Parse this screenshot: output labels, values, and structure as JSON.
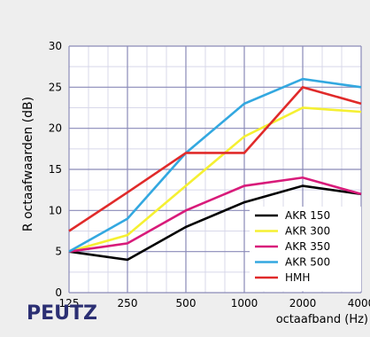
{
  "chart_data": {
    "type": "line",
    "ylabel": "R octaafwaarden (dB)",
    "xlabel": "octaafband (Hz)",
    "logo": "PEUTZ",
    "categories": [
      "125",
      "250",
      "500",
      "1000",
      "2000",
      "4000"
    ],
    "ylim": [
      0,
      30
    ],
    "yticks": [
      0,
      5,
      10,
      15,
      20,
      25,
      30
    ],
    "grid": true,
    "legend_placement": "bottom-right",
    "series": [
      {
        "name": "AKR 150",
        "color": "#000000",
        "values": [
          5,
          4,
          8,
          11,
          13,
          12
        ]
      },
      {
        "name": "AKR 300",
        "color": "#f5f032",
        "values": [
          5,
          7,
          13,
          19,
          22.5,
          22
        ]
      },
      {
        "name": "AKR 350",
        "color": "#d81b7a",
        "values": [
          5,
          6,
          10,
          13,
          14,
          12
        ]
      },
      {
        "name": "AKR 500",
        "color": "#33a8e0",
        "values": [
          5,
          9,
          17,
          23,
          26,
          25
        ]
      },
      {
        "name": "HMH",
        "color": "#e02a2a",
        "values": [
          7.5,
          12.2,
          17,
          17,
          25,
          23
        ]
      }
    ],
    "colors": {
      "plot_background": "#ffffff",
      "grid_major": "#8a8ab8",
      "grid_minor": "#d8d8ea",
      "logo": "#2b2f73"
    }
  }
}
